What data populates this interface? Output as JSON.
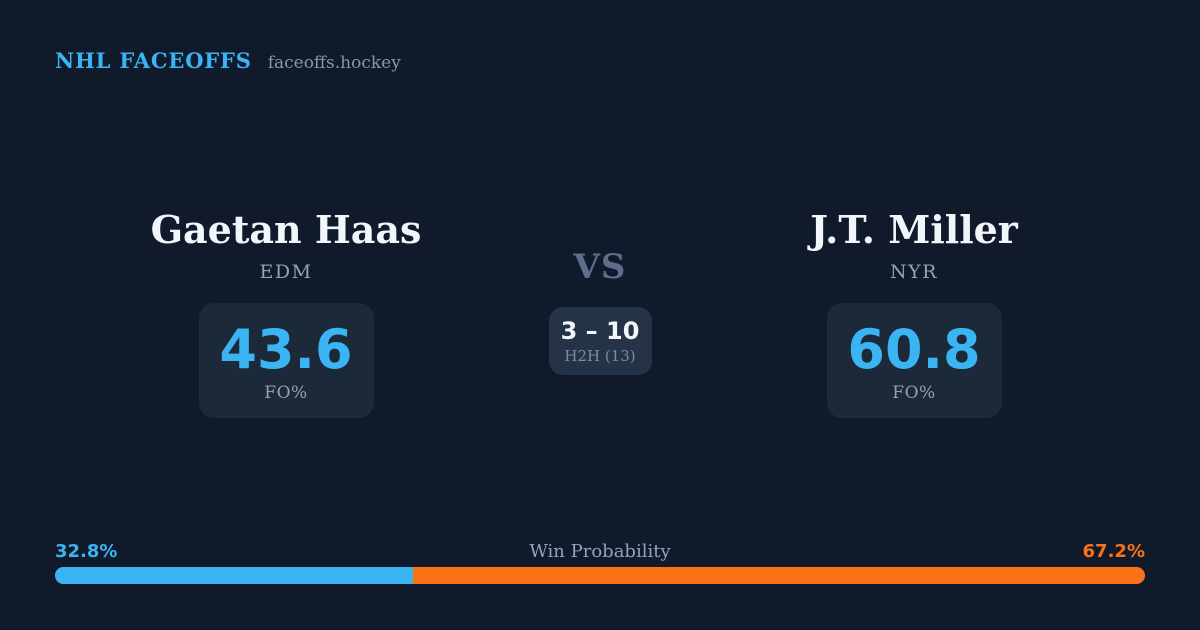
{
  "header": {
    "brand": "NHL FACEOFFS",
    "domain": "faceoffs.hockey"
  },
  "matchup": {
    "vs_label": "VS",
    "h2h": {
      "score": "3 – 10",
      "label": "H2H (13)"
    },
    "players": [
      {
        "name": "Gaetan Haas",
        "team": "EDM",
        "fo_pct": "43.6",
        "stat_label": "FO%"
      },
      {
        "name": "J.T. Miller",
        "team": "NYR",
        "fo_pct": "60.8",
        "stat_label": "FO%"
      }
    ]
  },
  "win_probability": {
    "title": "Win Probability",
    "left_label": "32.8%",
    "right_label": "67.2%",
    "left_value": 32.8,
    "right_value": 67.2
  },
  "colors": {
    "background": "#111a2b",
    "card_bg": "#1c2939",
    "h2h_bg": "#253349",
    "accent_blue": "#3ab4f2",
    "accent_orange": "#f97316",
    "text_primary": "#f2f5f9",
    "text_muted": "#94a1b5",
    "vs_color": "#5d6e8a"
  }
}
